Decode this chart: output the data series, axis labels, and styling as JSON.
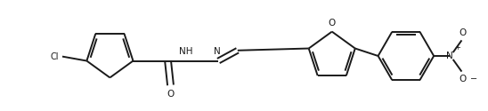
{
  "background_color": "#ffffff",
  "line_color": "#1a1a1a",
  "line_width": 1.4,
  "figsize": [
    5.48,
    1.25
  ],
  "dpi": 100,
  "xlim": [
    0,
    548
  ],
  "ylim": [
    0,
    125
  ]
}
